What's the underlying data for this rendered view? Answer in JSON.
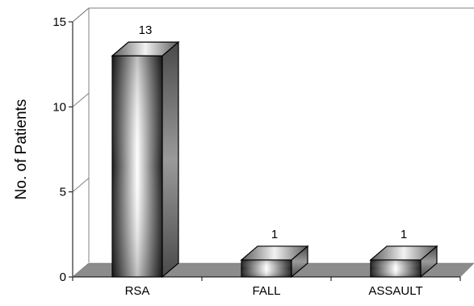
{
  "chart_data": {
    "type": "bar",
    "style": "3d-column",
    "categories": [
      "RSA",
      "FALL",
      "ASSAULT"
    ],
    "values": [
      13,
      1,
      1
    ],
    "data_labels": [
      "13",
      "1",
      "1"
    ],
    "title": "",
    "xlabel": "",
    "ylabel": "No. of Patients",
    "ylim": [
      0,
      15
    ],
    "yticks": [
      0,
      5,
      10,
      15
    ],
    "ytick_labels": [
      "0",
      "5",
      "10",
      "15"
    ],
    "grid": false,
    "legend": "none",
    "colors": {
      "bar_dark": "#1e1e1e",
      "bar_mid": "#8a8a8a",
      "bar_light": "#ffffff",
      "floor": "#8c8c8c",
      "wall_edge": "#808080"
    }
  }
}
